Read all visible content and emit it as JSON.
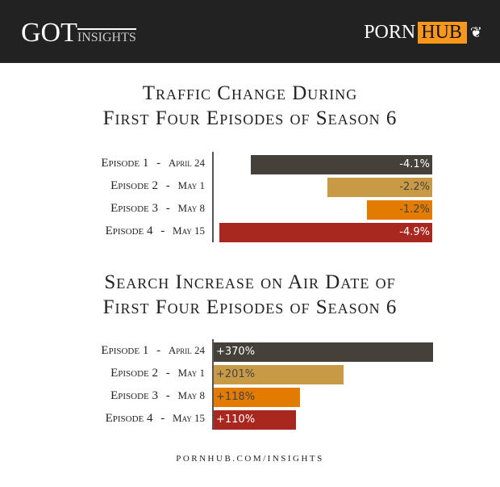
{
  "header": {
    "left_logo": {
      "main": "GOT",
      "sub": "INSIGHTS"
    },
    "right_logo": {
      "part1": "PORN",
      "part2": "HUB",
      "icon": "dragon-icon"
    }
  },
  "chart_data": [
    {
      "type": "bar",
      "orientation": "horizontal",
      "title": "Traffic change during first four episodes of Season 6",
      "title_lines": [
        "Traffic Change During",
        "First Four Episodes of Season 6"
      ],
      "categories": [
        {
          "episode": "Episode 1",
          "date": "April 24"
        },
        {
          "episode": "Episode 2",
          "date": "May 1"
        },
        {
          "episode": "Episode 3",
          "date": "May 8"
        },
        {
          "episode": "Episode 4",
          "date": "May 15"
        }
      ],
      "values": [
        -4.1,
        -2.2,
        -1.2,
        -4.9
      ],
      "labels": [
        "-4.1%",
        "-2.2%",
        "-1.2%",
        "-4.9%"
      ],
      "colors": [
        "#45403a",
        "#c99a45",
        "#e27b00",
        "#a8281f"
      ],
      "label_colors": [
        "#ffffff",
        "#444444",
        "#444444",
        "#ffffff"
      ]
    },
    {
      "type": "bar",
      "orientation": "horizontal",
      "title": "Search increase on air date of first four episodes of Season 6",
      "title_lines": [
        "Search Increase on Air Date of",
        "First Four Episodes of Season 6"
      ],
      "categories": [
        {
          "episode": "Episode 1",
          "date": "April 24"
        },
        {
          "episode": "Episode 2",
          "date": "May 1"
        },
        {
          "episode": "Episode 3",
          "date": "May 8"
        },
        {
          "episode": "Episode 4",
          "date": "May 15"
        }
      ],
      "values": [
        370,
        201,
        118,
        110
      ],
      "labels": [
        "+370%",
        "+201%",
        "+118%",
        "+110%"
      ],
      "colors": [
        "#45403a",
        "#c99a45",
        "#e27b00",
        "#a8281f"
      ],
      "label_colors": [
        "#ffffff",
        "#444444",
        "#444444",
        "#ffffff"
      ]
    }
  ],
  "footer": "PORNHUB.COM/INSIGHTS"
}
